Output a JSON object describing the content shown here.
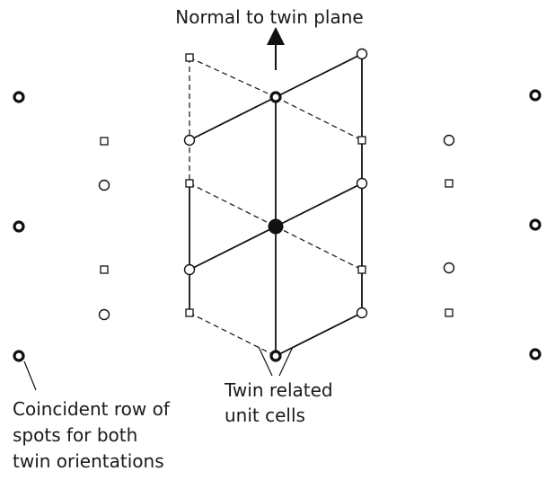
{
  "labels": {
    "twin_plane_normal": "Normal to twin plane",
    "twin_cells_line1": "Twin related",
    "twin_cells_line2": "unit cells",
    "coincident_line1": "Coincident row of",
    "coincident_line2": "spots for both",
    "coincident_line3": "twin orientations"
  },
  "legend_symbols": {
    "open_circle": "spot of one twin orientation",
    "open_square": "spot of other twin orientation",
    "thick_circle": "coincident spot",
    "filled_circle": "origin"
  },
  "colors": {
    "ink": "#111111",
    "background": "#ffffff"
  }
}
